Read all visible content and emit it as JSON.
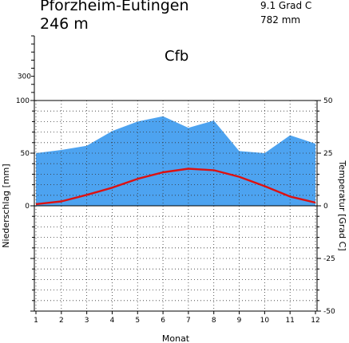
{
  "header": {
    "station": "Pforzheim-Eutingen",
    "elevation": "246 m",
    "mean_temperature": "9.1 Grad C",
    "annual_precipitation": "782 mm",
    "climate_class": "Cfb"
  },
  "colors": {
    "precip_fill": "#4da3f0",
    "temp_line": "#dd1111",
    "grid": "#333333"
  },
  "chart_data": {
    "type": "area",
    "xlabel": "Monat",
    "ylabel_left": "Niederschlag [mm]",
    "ylabel_right": "Temperatur [Grad C]",
    "x": [
      1,
      2,
      3,
      4,
      5,
      6,
      7,
      8,
      9,
      10,
      11,
      12
    ],
    "x_ticks": [
      "1",
      "2",
      "3",
      "4",
      "5",
      "6",
      "7",
      "8",
      "9",
      "10",
      "11",
      "12"
    ],
    "precip_ylim": [
      -100,
      100
    ],
    "precip_upper_ticks": [
      "300"
    ],
    "precip_ticks": [
      "100",
      "50",
      "0"
    ],
    "temp_ylim": [
      -50,
      50
    ],
    "temp_ticks": [
      "50",
      "25",
      "0",
      "-25",
      "-50"
    ],
    "grid": true,
    "series": [
      {
        "kind": "precipitation",
        "values": [
          50,
          53,
          57,
          71,
          80,
          85,
          74,
          81,
          52,
          50,
          67,
          59
        ]
      },
      {
        "kind": "temperature",
        "values": [
          0.8,
          2.1,
          5.2,
          8.6,
          12.8,
          15.9,
          17.6,
          16.9,
          13.8,
          9.3,
          4.4,
          1.5
        ]
      }
    ]
  }
}
